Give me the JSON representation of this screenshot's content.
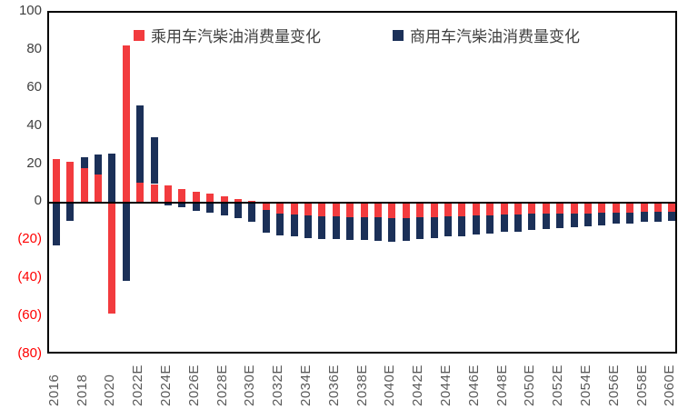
{
  "chart_data": {
    "type": "bar",
    "stacked": true,
    "title": "",
    "grid": false,
    "legend_position": "top-inside",
    "y_axis": {
      "min": -80,
      "max": 100,
      "step": 20,
      "tick_labels": [
        "100",
        "80",
        "60",
        "40",
        "20",
        "0",
        "(20)",
        "(40)",
        "(60)",
        "(80)"
      ],
      "tick_values": [
        100,
        80,
        60,
        40,
        20,
        0,
        -20,
        -40,
        -60,
        -80
      ],
      "positive_label_color": "#3f3f3f",
      "negative_label_color": "#ff0000"
    },
    "x_axis": {
      "n_categories": 45,
      "first_year": 2016,
      "tick_labels": [
        "2016",
        "2018",
        "2020",
        "2022E",
        "2024E",
        "2026E",
        "2028E",
        "2030E",
        "2032E",
        "2034E",
        "2036E",
        "2038E",
        "2040E",
        "2042E",
        "2044E",
        "2046E",
        "2048E",
        "2050E",
        "2052E",
        "2054E",
        "2056E",
        "2058E",
        "2060E"
      ],
      "tick_indices": [
        0,
        2,
        4,
        6,
        8,
        10,
        12,
        14,
        16,
        18,
        20,
        22,
        24,
        26,
        28,
        30,
        32,
        34,
        36,
        38,
        40,
        42,
        44
      ]
    },
    "series": [
      {
        "name": "乘用车汽柴油消费量变化",
        "color": "#f23b3e",
        "values": [
          23,
          21.5,
          18.5,
          15,
          -58,
          83,
          10.5,
          10,
          9.5,
          7.5,
          6,
          5,
          3.5,
          2,
          1,
          -3.5,
          -5.5,
          -6,
          -6.5,
          -7,
          -7,
          -7.5,
          -7.5,
          -7.5,
          -8,
          -8,
          -7.5,
          -7.5,
          -7,
          -7,
          -6.5,
          -6.5,
          -6,
          -6,
          -5.5,
          -5.5,
          -5.5,
          -5.5,
          -5.5,
          -5,
          -5,
          -5,
          -4.5,
          -4.5,
          -4.5
        ]
      },
      {
        "name": "商用车汽柴油消费量变化",
        "color": "#1b3058",
        "values": [
          -22,
          -9.5,
          5.5,
          10.5,
          26,
          -41,
          41,
          24.5,
          -1,
          -2,
          -4,
          -5,
          -6.5,
          -8,
          -10,
          -12,
          -11.5,
          -11.5,
          -12,
          -12,
          -12,
          -12,
          -12,
          -12.5,
          -12.5,
          -12,
          -11.5,
          -11,
          -10.5,
          -10.5,
          -10,
          -9.5,
          -9,
          -9,
          -8.5,
          -8,
          -7.5,
          -7,
          -6.5,
          -6.5,
          -6,
          -6,
          -5.5,
          -5.5,
          -5
        ]
      }
    ]
  }
}
